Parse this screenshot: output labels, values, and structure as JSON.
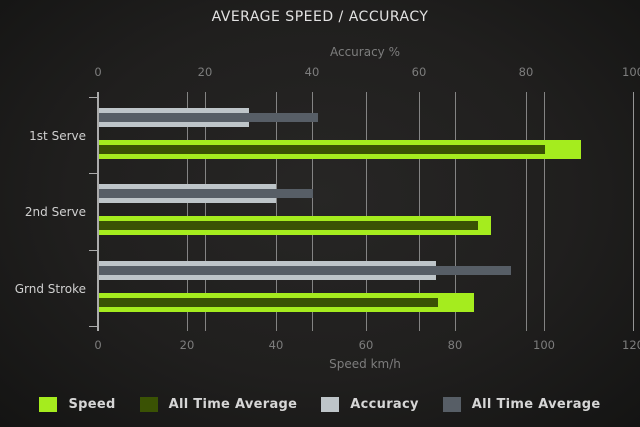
{
  "title": "AVERAGE SPEED / ACCURACY",
  "chart_data": {
    "type": "bar",
    "orientation": "horizontal",
    "title": "AVERAGE SPEED / ACCURACY",
    "categories": [
      "1st Serve",
      "2nd Serve",
      "Grnd Stroke"
    ],
    "axes": {
      "top": {
        "title": "Accuracy %",
        "min": 0,
        "max": 100,
        "ticks": [
          0,
          20,
          40,
          60,
          80,
          100
        ]
      },
      "bottom": {
        "title": "Speed km/h",
        "min": 0,
        "max": 120,
        "ticks": [
          0,
          20,
          40,
          60,
          80,
          100,
          120
        ]
      }
    },
    "series": [
      {
        "name": "Speed",
        "axis": "bottom",
        "role": "main",
        "color": "#a5ec1e",
        "values": [
          108,
          88,
          84
        ]
      },
      {
        "name": "All Time Average",
        "axis": "bottom",
        "role": "overlay",
        "color": "#3a5204",
        "values": [
          100,
          85,
          76
        ]
      },
      {
        "name": "Accuracy",
        "axis": "top",
        "role": "main",
        "color": "#bec5c9",
        "values": [
          28,
          33,
          63
        ]
      },
      {
        "name": "All Time Average",
        "axis": "top",
        "role": "overlay",
        "color": "#575e66",
        "values": [
          41,
          40,
          77
        ]
      }
    ],
    "grid": true,
    "legend_position": "bottom"
  },
  "legend": {
    "items": [
      {
        "label": "Speed",
        "color": "#a5ec1e"
      },
      {
        "label": "All Time Average",
        "color": "#3a5204"
      },
      {
        "label": "Accuracy",
        "color": "#bec5c9"
      },
      {
        "label": "All Time Average",
        "color": "#575e66"
      }
    ]
  },
  "colors": {
    "background_center": "#272625",
    "background_edge": "#141413",
    "gridline": "#9a9a9a",
    "axis_line": "#ababab",
    "title_text": "#e2e2e2",
    "tick_text": "#7d7d7d",
    "category_text": "#d0d0d0",
    "legend_text": "#d6d6d6"
  }
}
